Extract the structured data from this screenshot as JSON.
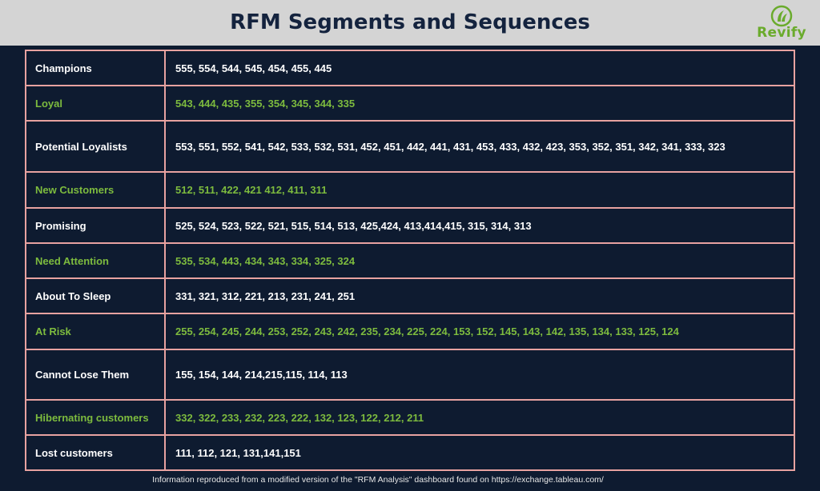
{
  "header": {
    "title": "RFM Segments and Sequences",
    "logo_text": "Revify",
    "logo_icon": "leaf-circle-icon"
  },
  "colors": {
    "background": "#0e1b30",
    "header_bar": "#d4d4d4",
    "title": "#14233e",
    "border": "#e7a2a0",
    "text_white": "#ffffff",
    "text_green": "#7dbb3e",
    "logo_green": "#6aab2c"
  },
  "segments": [
    {
      "name": "Champions",
      "sequences": "555, 554, 544, 545, 454, 455, 445",
      "green": false
    },
    {
      "name": "Loyal",
      "sequences": "543, 444, 435, 355, 354, 345, 344, 335",
      "green": true
    },
    {
      "name": "Potential Loyalists",
      "sequences": "553, 551, 552, 541, 542, 533, 532, 531, 452, 451, 442, 441, 431, 453, 433, 432, 423, 353, 352, 351, 342, 341, 333, 323",
      "green": false
    },
    {
      "name": "New Customers",
      "sequences": "512, 511, 422, 421 412, 411, 311",
      "green": true
    },
    {
      "name": "Promising",
      "sequences": "525, 524, 523, 522, 521, 515, 514, 513, 425,424, 413,414,415, 315, 314, 313",
      "green": false
    },
    {
      "name": "Need Attention",
      "sequences": "535, 534, 443, 434, 343, 334, 325, 324",
      "green": true
    },
    {
      "name": "About To Sleep",
      "sequences": "331, 321, 312, 221, 213, 231, 241, 251",
      "green": false
    },
    {
      "name": "At Risk",
      "sequences": "255, 254, 245, 244, 253, 252, 243, 242, 235, 234, 225, 224, 153, 152, 145, 143, 142, 135, 134, 133, 125, 124",
      "green": true
    },
    {
      "name": "Cannot Lose Them",
      "sequences": "155, 154, 144, 214,215,115, 114, 113",
      "green": false
    },
    {
      "name": "Hibernating customers",
      "sequences": "332, 322, 233, 232, 223, 222, 132, 123, 122, 212, 211",
      "green": true
    },
    {
      "name": "Lost customers",
      "sequences": "111, 112, 121, 131,141,151",
      "green": false
    }
  ],
  "footer": {
    "note": "Information reproduced from a modified version of the \"RFM Analysis\" dashboard found on https://exchange.tableau.com/"
  }
}
